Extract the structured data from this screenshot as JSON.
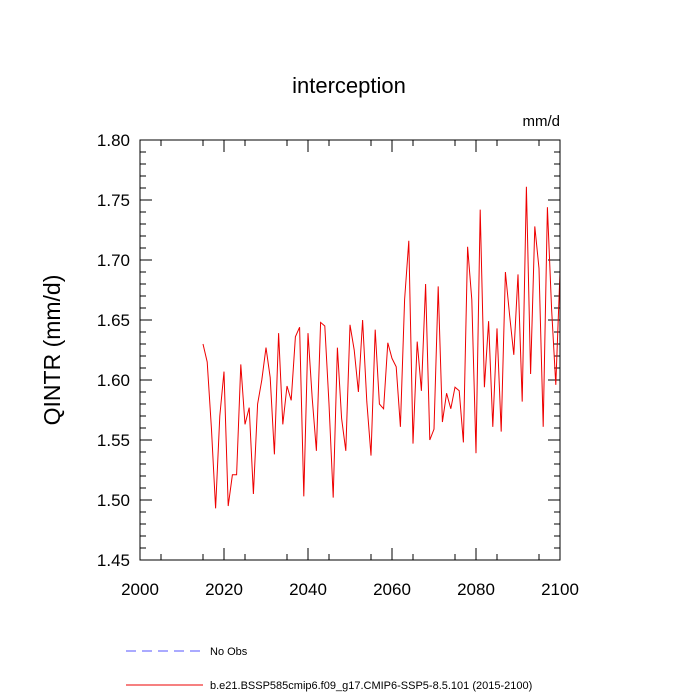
{
  "chart_data": {
    "type": "line",
    "title": "interception",
    "units": "mm/d",
    "xlabel": "",
    "ylabel": "QINTR  (mm/d)",
    "xlim": [
      2000,
      2100
    ],
    "ylim": [
      1.45,
      1.8
    ],
    "xticks": [
      2000,
      2020,
      2040,
      2060,
      2080,
      2100
    ],
    "yticks": [
      "1.45",
      "1.50",
      "1.55",
      "1.60",
      "1.65",
      "1.70",
      "1.75",
      "1.80"
    ],
    "grid": false,
    "legend": {
      "placement": "bottom-left"
    },
    "series": [
      {
        "name": "No Obs",
        "color": "#5555ff",
        "style": "dashed",
        "x": [],
        "y": []
      },
      {
        "name": "b.e21.BSSP585cmip6.f09_g17.CMIP6-SSP5-8.5.101 (2015-2100)",
        "color": "#ee0000",
        "style": "solid",
        "x": [
          2015,
          2016,
          2017,
          2018,
          2019,
          2020,
          2021,
          2022,
          2023,
          2024,
          2025,
          2026,
          2027,
          2028,
          2029,
          2030,
          2031,
          2032,
          2033,
          2034,
          2035,
          2036,
          2037,
          2038,
          2039,
          2040,
          2041,
          2042,
          2043,
          2044,
          2045,
          2046,
          2047,
          2048,
          2049,
          2050,
          2051,
          2052,
          2053,
          2054,
          2055,
          2056,
          2057,
          2058,
          2059,
          2060,
          2061,
          2062,
          2063,
          2064,
          2065,
          2066,
          2067,
          2068,
          2069,
          2070,
          2071,
          2072,
          2073,
          2074,
          2075,
          2076,
          2077,
          2078,
          2079,
          2080,
          2081,
          2082,
          2083,
          2084,
          2085,
          2086,
          2087,
          2088,
          2089,
          2090,
          2091,
          2092,
          2093,
          2094,
          2095,
          2096,
          2097,
          2098,
          2099,
          2100
        ],
        "y": [
          1.63,
          1.615,
          1.56,
          1.493,
          1.57,
          1.607,
          1.495,
          1.521,
          1.521,
          1.613,
          1.563,
          1.577,
          1.505,
          1.58,
          1.6,
          1.627,
          1.602,
          1.538,
          1.639,
          1.563,
          1.595,
          1.583,
          1.636,
          1.644,
          1.503,
          1.639,
          1.585,
          1.541,
          1.648,
          1.645,
          1.58,
          1.502,
          1.627,
          1.568,
          1.541,
          1.646,
          1.625,
          1.59,
          1.65,
          1.582,
          1.537,
          1.642,
          1.58,
          1.576,
          1.631,
          1.618,
          1.611,
          1.561,
          1.667,
          1.716,
          1.547,
          1.632,
          1.591,
          1.68,
          1.55,
          1.559,
          1.678,
          1.565,
          1.589,
          1.576,
          1.594,
          1.591,
          1.548,
          1.711,
          1.667,
          1.539,
          1.742,
          1.594,
          1.649,
          1.561,
          1.643,
          1.557,
          1.69,
          1.654,
          1.621,
          1.688,
          1.582,
          1.761,
          1.605,
          1.728,
          1.693,
          1.561,
          1.744,
          1.659,
          1.596,
          1.69
        ]
      }
    ]
  }
}
